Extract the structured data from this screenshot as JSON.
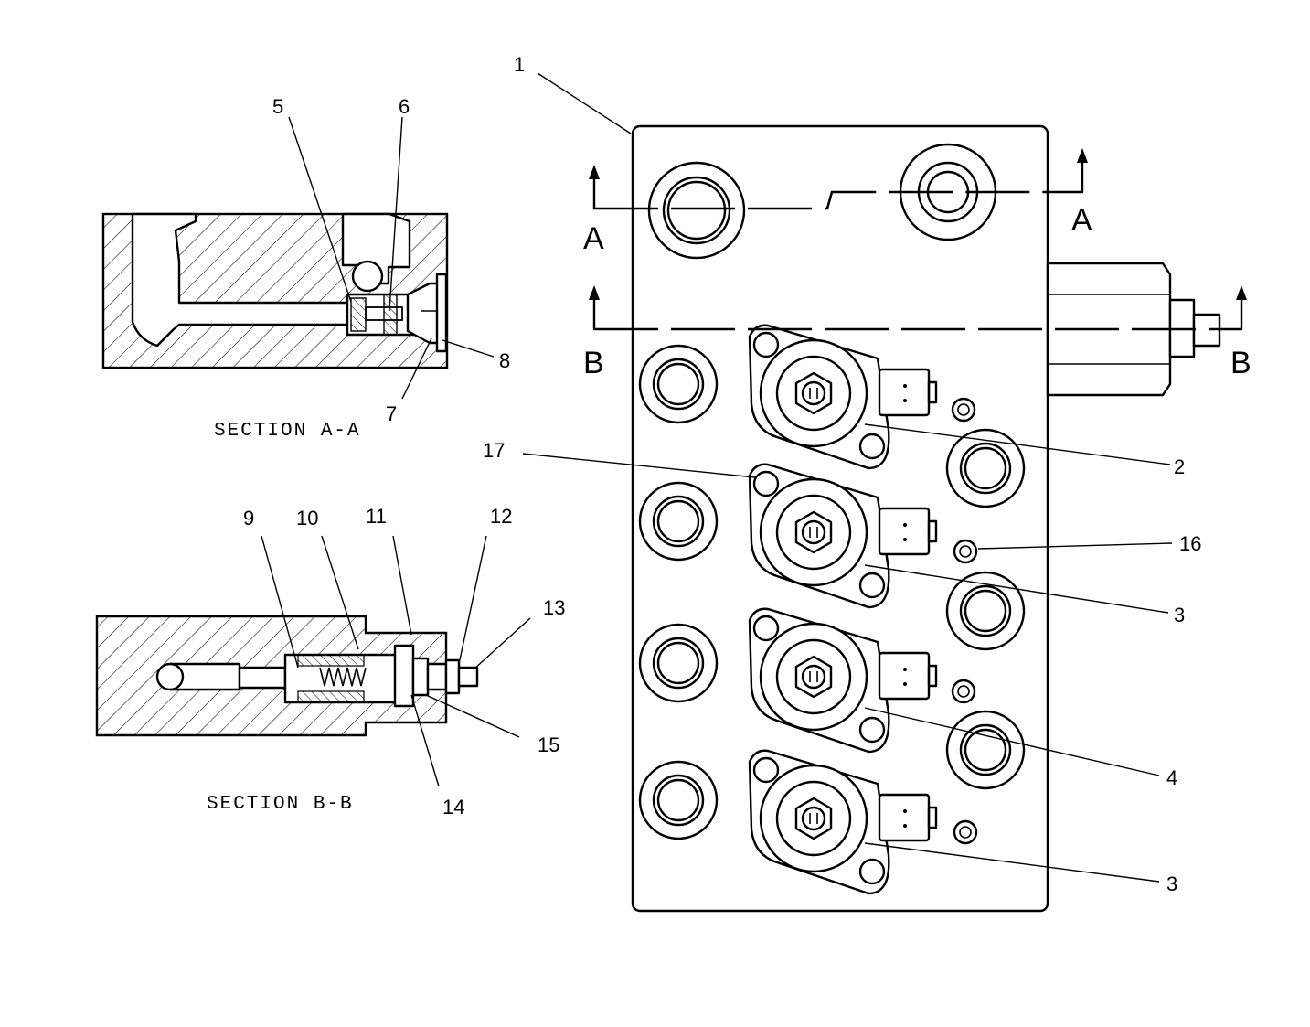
{
  "section_titles": {
    "a": "SECTION A-A",
    "b": "SECTION B-B"
  },
  "section_marks": {
    "a_left": "A",
    "a_right": "A",
    "b_left": "B",
    "b_right": "B"
  },
  "callouts": {
    "c1": "1",
    "c2": "2",
    "c3a": "3",
    "c3b": "3",
    "c4": "4",
    "c5": "5",
    "c6": "6",
    "c7": "7",
    "c8": "8",
    "c9": "9",
    "c10": "10",
    "c11": "11",
    "c12": "12",
    "c13": "13",
    "c14": "14",
    "c15": "15",
    "c16": "16",
    "c17": "17"
  }
}
